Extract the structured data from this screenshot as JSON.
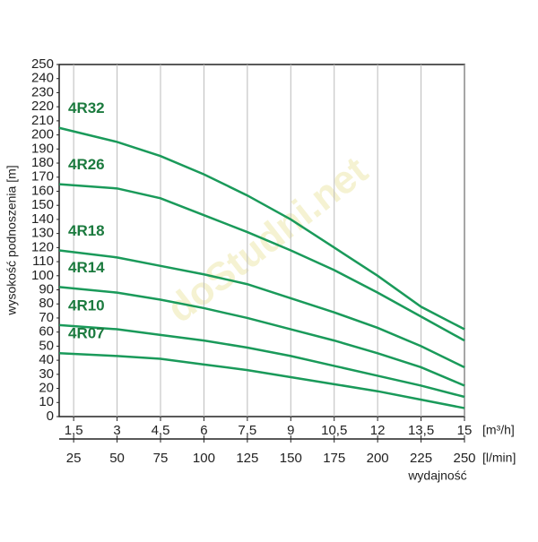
{
  "chart_data": {
    "type": "line",
    "y_label": "wysokość podnoszenia [m]",
    "x_unit": "[m³/h]",
    "x2_unit": "[l/min]",
    "x2_label": "wydajność",
    "watermark": "doStudni.net",
    "x": [
      1,
      3,
      4.5,
      6,
      7.5,
      9,
      10.5,
      12,
      13.5,
      15
    ],
    "series": [
      {
        "name": "4R32",
        "color": "#1a9a5a",
        "values": [
          205,
          195,
          185,
          172,
          157,
          140,
          120,
          100,
          78,
          62
        ]
      },
      {
        "name": "4R26",
        "color": "#1a9a5a",
        "values": [
          165,
          162,
          155,
          143,
          131,
          118,
          104,
          88,
          71,
          54
        ]
      },
      {
        "name": "4R18",
        "color": "#1a9a5a",
        "values": [
          118,
          113,
          107,
          101,
          94,
          84,
          74,
          63,
          50,
          35
        ]
      },
      {
        "name": "4R14",
        "color": "#1a9a5a",
        "values": [
          92,
          88,
          83,
          77,
          70,
          62,
          54,
          45,
          35,
          22
        ]
      },
      {
        "name": "4R10",
        "color": "#1a9a5a",
        "values": [
          65,
          62,
          58,
          54,
          49,
          43,
          36,
          29,
          22,
          14
        ]
      },
      {
        "name": "4R07",
        "color": "#1a9a5a",
        "values": [
          45,
          43,
          41,
          37,
          33,
          28,
          23,
          18,
          12,
          6
        ]
      }
    ],
    "xlim": [
      1,
      15
    ],
    "xticks": [
      {
        "value": 1.5,
        "label": "1,5"
      },
      3,
      {
        "value": 4.5,
        "label": "4,5"
      },
      6,
      {
        "value": 7.5,
        "label": "7,5"
      },
      9,
      {
        "value": 10.5,
        "label": "10,5"
      },
      12,
      {
        "value": 13.5,
        "label": "13,5"
      },
      15
    ],
    "x2lim": [
      16.667,
      250
    ],
    "x2ticks": [
      25,
      50,
      75,
      100,
      125,
      150,
      175,
      200,
      225,
      250
    ],
    "ylim": [
      0,
      250
    ],
    "yticks": [
      0,
      10,
      20,
      30,
      40,
      50,
      60,
      70,
      80,
      90,
      100,
      110,
      120,
      130,
      140,
      150,
      160,
      170,
      180,
      190,
      200,
      210,
      220,
      230,
      240,
      250
    ],
    "grid": true
  }
}
